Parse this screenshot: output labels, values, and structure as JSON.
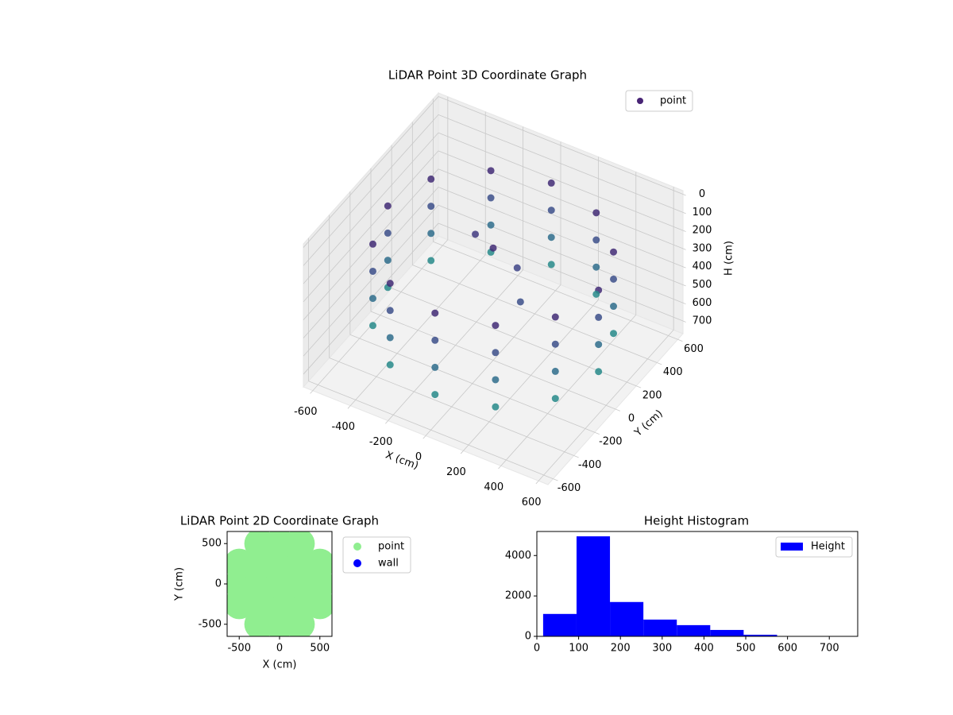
{
  "chart_data": [
    {
      "type": "scatter3d",
      "title": "LiDAR Point 3D Coordinate Graph",
      "xlabel": "X (cm)",
      "ylabel": "Y (cm)",
      "zlabel": "H (cm)",
      "series": [
        {
          "name": "point",
          "color": "#482475",
          "x": [
            560,
            560,
            560,
            560,
            485,
            485,
            485,
            485,
            280,
            280,
            280,
            280,
            0,
            0,
            0,
            0,
            -280,
            -280,
            -280,
            -280,
            -485,
            -485,
            -485,
            -485,
            -560,
            -560,
            -560,
            -560,
            -485,
            -485,
            -485,
            -485,
            -280,
            -280,
            -280,
            -280,
            0,
            0,
            0,
            0,
            280,
            280,
            280,
            280,
            485,
            485,
            485,
            485,
            0,
            100,
            -150,
            200
          ],
          "y": [
            0,
            0,
            0,
            0,
            280,
            280,
            280,
            280,
            485,
            485,
            485,
            485,
            560,
            560,
            560,
            560,
            485,
            485,
            485,
            485,
            280,
            280,
            280,
            280,
            0,
            0,
            0,
            0,
            -280,
            -280,
            -280,
            -280,
            -485,
            -485,
            -485,
            -485,
            -560,
            -560,
            -560,
            -560,
            -485,
            -485,
            -485,
            -485,
            -280,
            -280,
            -280,
            -280,
            0,
            50,
            100,
            -100
          ],
          "z": [
            150,
            300,
            450,
            600,
            150,
            300,
            450,
            600,
            150,
            300,
            450,
            600,
            150,
            300,
            450,
            600,
            150,
            300,
            450,
            600,
            150,
            300,
            450,
            600,
            150,
            300,
            450,
            600,
            150,
            300,
            450,
            600,
            150,
            300,
            450,
            600,
            150,
            300,
            450,
            600,
            150,
            300,
            450,
            600,
            150,
            300,
            450,
            600,
            150,
            250,
            200,
            300
          ]
        }
      ],
      "colormap": [
        "#440154",
        "#414487",
        "#2a788e",
        "#22a884"
      ],
      "xlim": [
        -650,
        650
      ],
      "ylim": [
        -650,
        650
      ],
      "zlim": [
        770,
        -20
      ],
      "xticks": [
        -600,
        -400,
        -200,
        0,
        200,
        400,
        600
      ],
      "yticks": [
        -600,
        -400,
        -200,
        0,
        200,
        400,
        600
      ],
      "zticks": [
        0,
        100,
        200,
        300,
        400,
        500,
        600,
        700
      ],
      "grid": true,
      "legend": "upper right"
    },
    {
      "type": "scatter",
      "title": "LiDAR Point 2D Coordinate Graph",
      "xlabel": "X (cm)",
      "ylabel": "Y (cm)",
      "series": [
        {
          "name": "point",
          "color": "#90ee90",
          "x": [
            -250,
            0,
            250,
            -500,
            -250,
            0,
            250,
            500,
            -500,
            -250,
            0,
            250,
            500,
            -500,
            -250,
            0,
            250,
            500,
            -250,
            0,
            250
          ],
          "y": [
            -500,
            -500,
            -500,
            -250,
            -250,
            -250,
            -250,
            -250,
            0,
            0,
            0,
            0,
            0,
            250,
            250,
            250,
            250,
            250,
            500,
            500,
            500
          ]
        },
        {
          "name": "wall",
          "color": "#0000ff",
          "x": [],
          "y": []
        }
      ],
      "xlim": [
        -650,
        650
      ],
      "ylim": [
        -650,
        650
      ],
      "xticks": [
        -500,
        0,
        500
      ],
      "yticks": [
        -500,
        0,
        500
      ],
      "legend": "outside right"
    },
    {
      "type": "histogram",
      "title": "Height Histogram",
      "bins": [
        15,
        95,
        175,
        255,
        335,
        415,
        495,
        575,
        655,
        735
      ],
      "series": [
        {
          "name": "Height",
          "color": "#0000ff",
          "values": [
            1109,
            4950,
            1700,
            830,
            555,
            317,
            80,
            10,
            5
          ]
        }
      ],
      "xlim": [
        0,
        768
      ],
      "ylim": [
        0,
        5190
      ],
      "xticks": [
        0,
        100,
        200,
        300,
        400,
        500,
        600,
        700
      ],
      "yticks": [
        0,
        2000,
        4000
      ],
      "legend": "upper right"
    }
  ]
}
